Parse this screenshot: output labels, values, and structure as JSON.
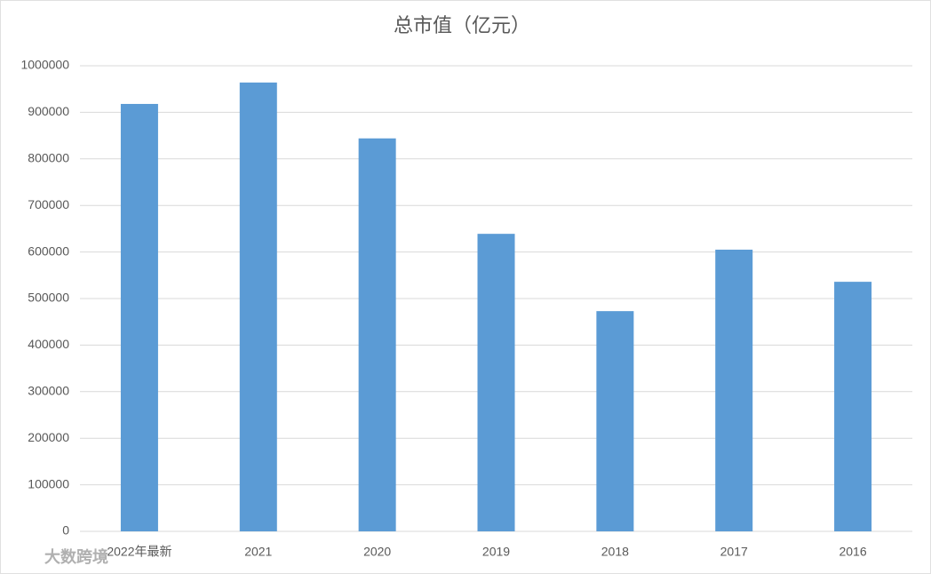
{
  "chart_data": {
    "type": "bar",
    "title": "总市值（亿元）",
    "categories": [
      "2022年最新",
      "2021",
      "2020",
      "2019",
      "2018",
      "2017",
      "2016"
    ],
    "values": [
      918000,
      964000,
      844000,
      639000,
      473000,
      605000,
      536000
    ],
    "color": "#5b9bd5",
    "ylim": [
      0,
      1000000
    ],
    "yticks": [
      0,
      100000,
      200000,
      300000,
      400000,
      500000,
      600000,
      700000,
      800000,
      900000,
      1000000
    ],
    "grid": true
  },
  "watermark": "大数跨境"
}
